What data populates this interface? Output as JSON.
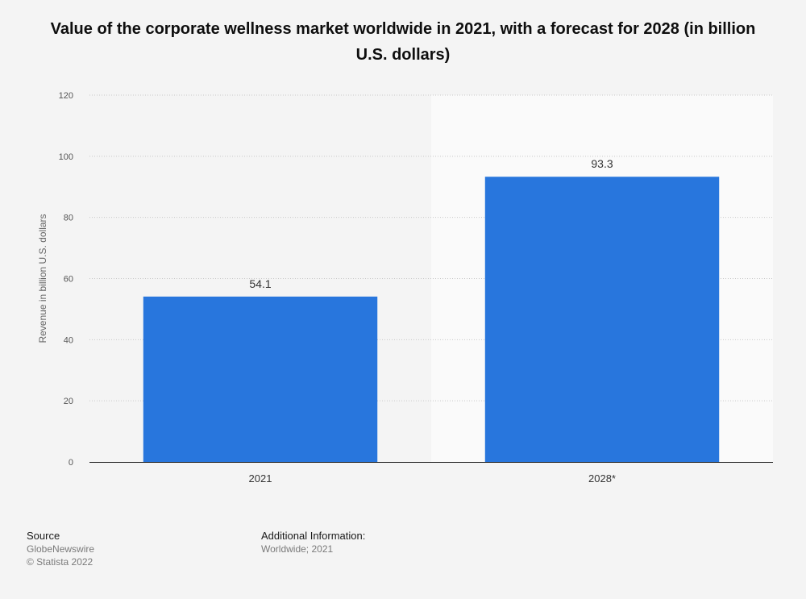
{
  "chart_data": {
    "type": "bar",
    "title": "Value of the corporate wellness market worldwide in 2021, with a forecast for 2028 (in billion U.S. dollars)",
    "categories": [
      "2021",
      "2028*"
    ],
    "values": [
      54.1,
      93.3
    ],
    "data_labels": [
      "54.1",
      "93.3"
    ],
    "xlabel": "",
    "ylabel": "Revenue in billion U.S. dollars",
    "ylim": [
      0,
      120
    ],
    "yticks": [
      0,
      20,
      40,
      60,
      80,
      100,
      120
    ],
    "grid": true,
    "forecast_category_index": 1,
    "bar_color": "#2876dd",
    "forecast_bg_color": "#fafafa"
  },
  "footer": {
    "source_heading": "Source",
    "source_name": "GlobeNewswire",
    "copyright": "© Statista 2022",
    "info_heading": "Additional Information:",
    "info_text": "Worldwide; 2021"
  }
}
